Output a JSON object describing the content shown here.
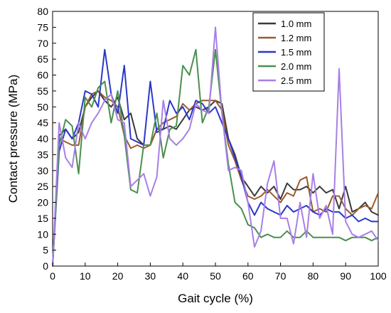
{
  "chart_data": {
    "type": "line",
    "title": "",
    "xlabel": "Gait cycle (%)",
    "ylabel": "Contact pressure (MPa)",
    "xlim": [
      0,
      100
    ],
    "ylim": [
      0,
      80
    ],
    "xticks": [
      0,
      10,
      20,
      30,
      40,
      50,
      60,
      70,
      80,
      90,
      100
    ],
    "yticks": [
      0,
      5,
      10,
      15,
      20,
      25,
      30,
      35,
      40,
      45,
      50,
      55,
      60,
      65,
      70,
      75,
      80
    ],
    "grid": false,
    "legend_position": "top-right",
    "series": [
      {
        "name": "1.0 mm",
        "color": "#3a3a3a",
        "x": [
          0,
          2,
          4,
          6,
          8,
          10,
          12,
          14,
          16,
          18,
          20,
          22,
          24,
          26,
          28,
          30,
          32,
          34,
          36,
          38,
          40,
          42,
          44,
          46,
          48,
          50,
          52,
          54,
          56,
          58,
          60,
          62,
          64,
          66,
          68,
          70,
          72,
          74,
          76,
          78,
          80,
          82,
          84,
          86,
          88,
          90,
          92,
          94,
          96,
          98,
          100
        ],
        "y": [
          0,
          41,
          43,
          40,
          42,
          50,
          53,
          55,
          52,
          50,
          53,
          46,
          48,
          40,
          38,
          38,
          43,
          43,
          44,
          43,
          46,
          49,
          50,
          49,
          50,
          52,
          51,
          40,
          35,
          28,
          25,
          22,
          25,
          23,
          25,
          21,
          26,
          24,
          24,
          25,
          23,
          25,
          23,
          24,
          18,
          25,
          17,
          18,
          20,
          17,
          16
        ]
      },
      {
        "name": "1.2 mm",
        "color": "#9c5a2e",
        "x": [
          0,
          2,
          4,
          6,
          8,
          10,
          12,
          14,
          16,
          18,
          20,
          22,
          24,
          26,
          28,
          30,
          32,
          34,
          36,
          38,
          40,
          42,
          44,
          46,
          48,
          50,
          52,
          54,
          56,
          58,
          60,
          62,
          64,
          66,
          68,
          70,
          72,
          74,
          76,
          78,
          80,
          82,
          84,
          86,
          88,
          90,
          92,
          94,
          96,
          98,
          100
        ],
        "y": [
          0,
          40,
          39,
          38,
          38,
          50,
          54,
          55,
          53,
          52,
          50,
          41,
          37,
          38,
          37,
          38,
          43,
          45,
          46,
          47,
          51,
          49,
          51,
          52,
          52,
          52,
          49,
          38,
          33,
          27,
          22,
          21,
          22,
          24,
          22,
          20,
          23,
          22,
          27,
          28,
          17,
          18,
          17,
          22,
          22,
          18,
          16,
          18,
          19,
          18,
          23
        ]
      },
      {
        "name": "1.5 mm",
        "color": "#2b37c9",
        "x": [
          0,
          2,
          4,
          6,
          8,
          10,
          12,
          14,
          16,
          18,
          20,
          22,
          24,
          26,
          28,
          30,
          32,
          34,
          36,
          38,
          40,
          42,
          44,
          46,
          48,
          50,
          52,
          54,
          56,
          58,
          60,
          62,
          64,
          66,
          68,
          70,
          72,
          74,
          76,
          78,
          80,
          82,
          84,
          86,
          88,
          90,
          92,
          94,
          96,
          98,
          100
        ],
        "y": [
          0,
          36,
          43,
          40,
          45,
          55,
          54,
          50,
          68,
          54,
          48,
          63,
          40,
          39,
          38,
          58,
          42,
          43,
          52,
          48,
          50,
          46,
          52,
          51,
          48,
          50,
          45,
          40,
          34,
          28,
          20,
          16,
          20,
          18,
          17,
          16,
          19,
          17,
          18,
          19,
          17,
          16,
          18,
          17,
          17,
          15,
          16,
          14,
          15,
          14,
          14
        ]
      },
      {
        "name": "2.0 mm",
        "color": "#4a8f4f",
        "x": [
          0,
          2,
          4,
          6,
          8,
          10,
          12,
          14,
          16,
          18,
          20,
          22,
          24,
          26,
          28,
          30,
          32,
          34,
          36,
          38,
          40,
          42,
          44,
          46,
          48,
          50,
          52,
          54,
          56,
          58,
          60,
          62,
          64,
          66,
          68,
          70,
          72,
          74,
          76,
          78,
          80,
          82,
          84,
          86,
          88,
          90,
          92,
          94,
          96,
          98,
          100
        ],
        "y": [
          0,
          38,
          46,
          44,
          29,
          53,
          50,
          56,
          58,
          45,
          55,
          41,
          24,
          23,
          38,
          38,
          48,
          34,
          43,
          44,
          63,
          60,
          68,
          45,
          50,
          68,
          48,
          32,
          20,
          18,
          13,
          12,
          9,
          10,
          9,
          9,
          11,
          9,
          9,
          11,
          9,
          9,
          9,
          9,
          9,
          8,
          9,
          9,
          9,
          8,
          9
        ]
      },
      {
        "name": "2.5 mm",
        "color": "#a87fe6",
        "x": [
          0,
          2,
          4,
          6,
          8,
          10,
          12,
          14,
          16,
          18,
          20,
          22,
          24,
          26,
          28,
          30,
          32,
          34,
          36,
          38,
          40,
          42,
          44,
          46,
          48,
          50,
          52,
          54,
          56,
          58,
          60,
          62,
          64,
          66,
          68,
          70,
          72,
          74,
          76,
          78,
          80,
          82,
          84,
          86,
          88,
          90,
          92,
          94,
          96,
          98,
          100
        ],
        "y": [
          0,
          45,
          34,
          31,
          45,
          40,
          45,
          48,
          52,
          54,
          46,
          45,
          25,
          27,
          29,
          22,
          28,
          52,
          40,
          38,
          40,
          43,
          51,
          49,
          48,
          75,
          48,
          30,
          31,
          30,
          20,
          6,
          11,
          26,
          33,
          15,
          15,
          7,
          20,
          9,
          29,
          15,
          19,
          10,
          62,
          14,
          10,
          9,
          10,
          11,
          8
        ]
      }
    ]
  }
}
